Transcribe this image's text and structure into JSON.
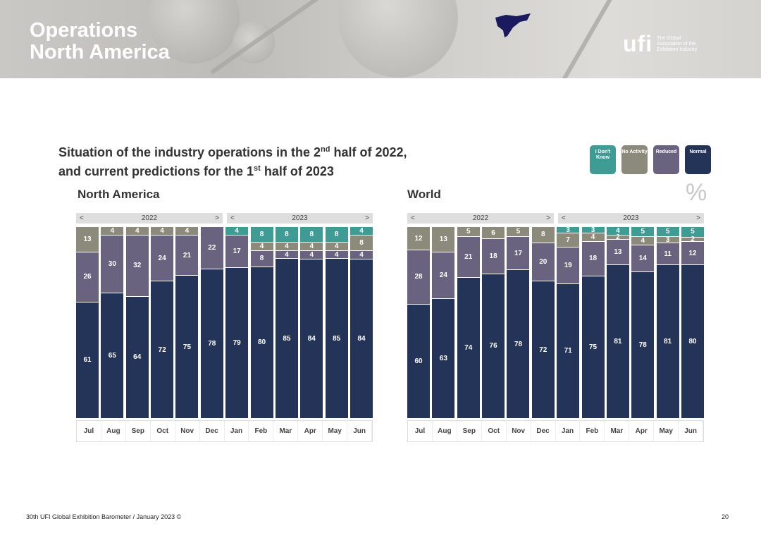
{
  "banner": {
    "title_line1": "Operations",
    "title_line2": "North America",
    "logo_text": "ufi",
    "logo_tagline": "The Global Association of the Exhibition Industry"
  },
  "heading": {
    "l1a": "Situation of the industry operations in the 2",
    "l1sup": "nd",
    "l1b": " half of 2022,",
    "l2a": "and current predictions for the 1",
    "l2sup": "st",
    "l2b": " half of 2023"
  },
  "percent_sign": "%",
  "legend": [
    {
      "label": "I Don't Know",
      "color": "#3e9c95"
    },
    {
      "label": "No Activity",
      "color": "#8b8a7b"
    },
    {
      "label": "Reduced",
      "color": "#6a6380"
    },
    {
      "label": "Normal",
      "color": "#243358"
    }
  ],
  "nav": {
    "prev": "<",
    "next": ">"
  },
  "chart_data": [
    {
      "type": "bar",
      "stacked": true,
      "title": "North America",
      "year_groups": [
        "2022",
        "2023"
      ],
      "categories": [
        "Jul",
        "Aug",
        "Sep",
        "Oct",
        "Nov",
        "Dec",
        "Jan",
        "Feb",
        "Mar",
        "Apr",
        "May",
        "Jun"
      ],
      "series": [
        {
          "name": "Normal",
          "values": [
            61,
            65,
            64,
            72,
            75,
            78,
            79,
            80,
            85,
            84,
            85,
            84
          ]
        },
        {
          "name": "Reduced",
          "values": [
            26,
            30,
            32,
            24,
            21,
            22,
            17,
            8,
            4,
            4,
            4,
            4
          ]
        },
        {
          "name": "No Activity",
          "values": [
            13,
            4,
            4,
            4,
            4,
            0,
            0,
            4,
            4,
            4,
            4,
            8
          ]
        },
        {
          "name": "I Don't Know",
          "values": [
            0,
            0,
            0,
            0,
            0,
            0,
            4,
            8,
            8,
            8,
            8,
            4
          ]
        }
      ],
      "ylim": [
        0,
        100
      ],
      "unit": "%"
    },
    {
      "type": "bar",
      "stacked": true,
      "title": "World",
      "year_groups": [
        "2022",
        "2023"
      ],
      "categories": [
        "Jul",
        "Aug",
        "Sep",
        "Oct",
        "Nov",
        "Dec",
        "Jan",
        "Feb",
        "Mar",
        "Apr",
        "May",
        "Jun"
      ],
      "series": [
        {
          "name": "Normal",
          "values": [
            60,
            63,
            74,
            76,
            78,
            72,
            71,
            75,
            81,
            78,
            81,
            80
          ]
        },
        {
          "name": "Reduced",
          "values": [
            28,
            24,
            21,
            18,
            17,
            20,
            19,
            18,
            13,
            14,
            11,
            12
          ]
        },
        {
          "name": "No Activity",
          "values": [
            12,
            13,
            5,
            6,
            5,
            8,
            7,
            4,
            2,
            4,
            3,
            2
          ]
        },
        {
          "name": "I Don't Know",
          "values": [
            0,
            0,
            0,
            0,
            0,
            0,
            3,
            3,
            4,
            5,
            5,
            5
          ]
        }
      ],
      "ylim": [
        0,
        100
      ],
      "unit": "%"
    }
  ],
  "footer": {
    "text": "30th UFI Global Exhibition Barometer / January 2023 ©",
    "page": "20"
  }
}
